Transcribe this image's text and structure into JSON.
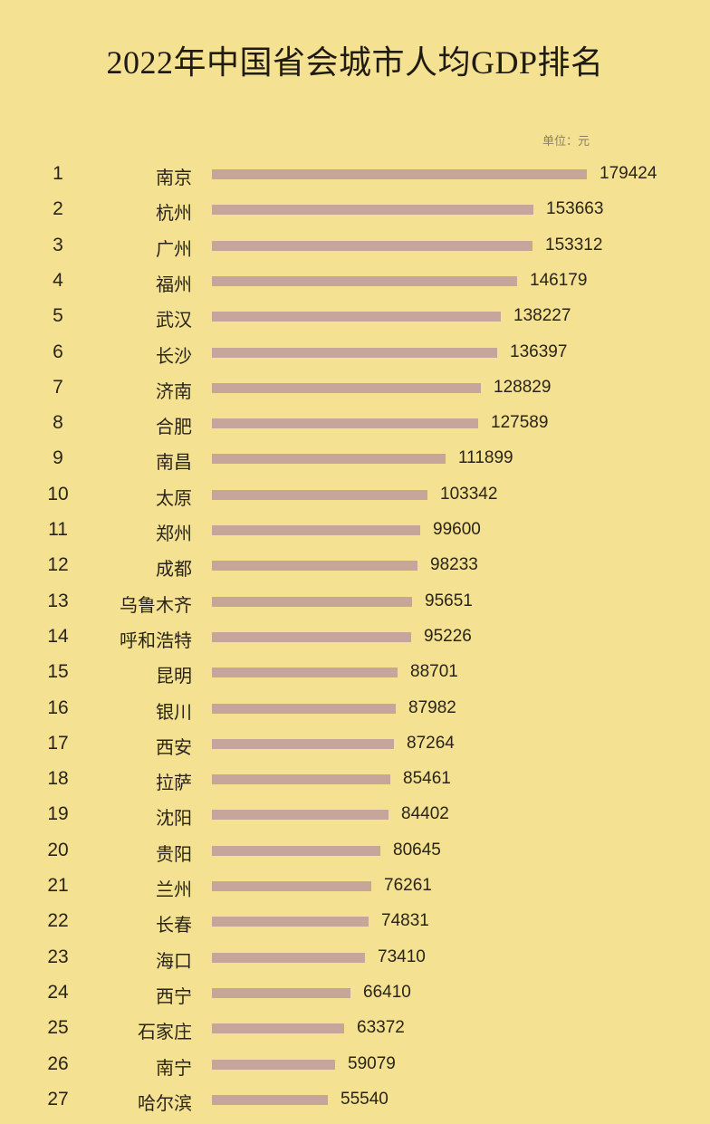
{
  "title": "2022年中国省会城市人均GDP排名",
  "unit": "单位：元",
  "colors": {
    "background": "#F4E292",
    "bar": "#C6A69A",
    "text": "#2a2418"
  },
  "chart_data": {
    "type": "bar",
    "orientation": "horizontal",
    "title": "2022年中国省会城市人均GDP排名",
    "unit_label": "单位：元",
    "xlabel": "",
    "ylabel": "",
    "grid": false,
    "legend": null,
    "categories": [
      "南京",
      "杭州",
      "广州",
      "福州",
      "武汉",
      "长沙",
      "济南",
      "合肥",
      "南昌",
      "太原",
      "郑州",
      "成都",
      "乌鲁木齐",
      "呼和浩特",
      "昆明",
      "银川",
      "西安",
      "拉萨",
      "沈阳",
      "贵阳",
      "兰州",
      "长春",
      "海口",
      "西宁",
      "石家庄",
      "南宁",
      "哈尔滨"
    ],
    "ranks": [
      1,
      2,
      3,
      4,
      5,
      6,
      7,
      8,
      9,
      10,
      11,
      12,
      13,
      14,
      15,
      16,
      17,
      18,
      19,
      20,
      21,
      22,
      23,
      24,
      25,
      26,
      27
    ],
    "values": [
      179424,
      153663,
      153312,
      146179,
      138227,
      136397,
      128829,
      127589,
      111899,
      103342,
      99600,
      98233,
      95651,
      95226,
      88701,
      87982,
      87264,
      85461,
      84402,
      80645,
      76261,
      74831,
      73410,
      66410,
      63372,
      59079,
      55540
    ],
    "xlim": [
      0,
      179424
    ]
  }
}
